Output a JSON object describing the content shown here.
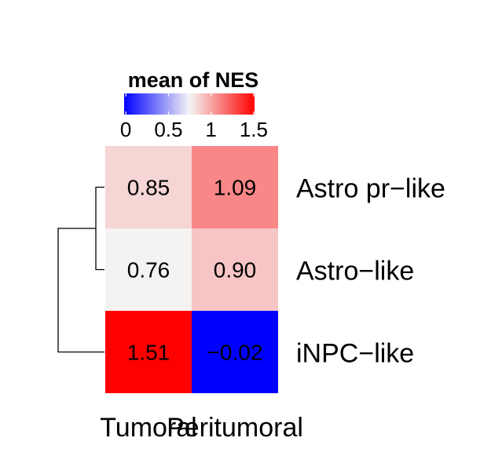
{
  "chart_data": {
    "type": "heatmap",
    "columns": [
      "Tumoral",
      "Peritumoral"
    ],
    "rows": [
      "Astro pr−like",
      "Astro−like",
      "iNPC−like"
    ],
    "values": [
      [
        0.85,
        1.09
      ],
      [
        0.76,
        0.9
      ],
      [
        1.51,
        -0.02
      ]
    ],
    "cell_labels": [
      [
        "0.85",
        "1.09"
      ],
      [
        "0.76",
        "0.90"
      ],
      [
        "1.51",
        "−0.02"
      ]
    ],
    "legend": {
      "title": "mean of NES",
      "ticks": [
        0,
        0.5,
        1,
        1.5
      ],
      "tick_labels": [
        "0",
        "0.5",
        "1",
        "1.5"
      ],
      "range": [
        -0.02,
        1.51
      ]
    },
    "colors": {
      "low": "#0000ff",
      "mid": "#f5f5f5",
      "high": "#ff0000",
      "mid_value": 0.75
    },
    "row_dendrogram": {
      "merges": [
        [
          "Astro pr−like",
          "Astro−like"
        ],
        [
          "cluster",
          "iNPC−like"
        ]
      ]
    }
  }
}
